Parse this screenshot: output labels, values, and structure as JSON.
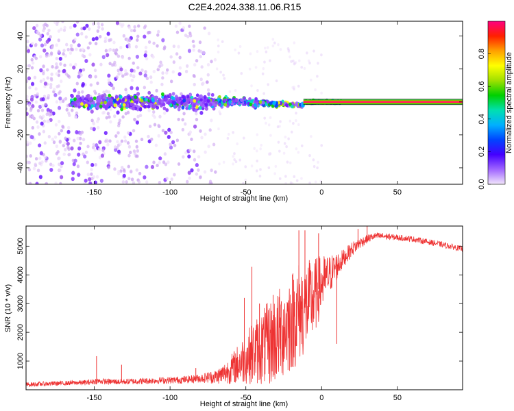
{
  "title": "C2E4.2024.338.11.06.R15",
  "chart_data": [
    {
      "type": "heatmap",
      "name": "spectrogram",
      "xlabel": "Height of straight line (km)",
      "ylabel": "Frequency (Hz)",
      "xlim": [
        -195,
        93
      ],
      "ylim": [
        -50,
        49
      ],
      "xticks": [
        -150,
        -100,
        -50,
        0,
        50
      ],
      "yticks": [
        -40,
        -20,
        0,
        20,
        40
      ],
      "colorbar": {
        "label": "Normalized spectral amplitude",
        "range": [
          0,
          1
        ],
        "ticks": [
          0.0,
          0.2,
          0.4,
          0.6,
          0.8
        ],
        "tick_labels": [
          "0.0",
          "0.2",
          "0.4",
          "0.6",
          "0.8"
        ],
        "colors": [
          "#f2e6fb",
          "#a066ff",
          "#4400ff",
          "#0044ff",
          "#00b0ff",
          "#00e0b0",
          "#00d000",
          "#a0e000",
          "#ffff00",
          "#ffa000",
          "#ff2000",
          "#ff0080"
        ]
      },
      "features": {
        "carrier_frequency_hz": 0,
        "narrowband_from_km": -12,
        "scatter_region_km": [
          -195,
          -70
        ],
        "spread_band_km": [
          -70,
          -12
        ]
      }
    },
    {
      "type": "line",
      "name": "snr",
      "xlabel": "Height of straight line (km)",
      "ylabel": "SNR (10 * v/v)",
      "xlim": [
        -195,
        93
      ],
      "ylim": [
        0,
        5700
      ],
      "xticks": [
        -150,
        -100,
        -50,
        0,
        50
      ],
      "yticks": [
        1000,
        2000,
        3000,
        4000,
        5000
      ],
      "line_color": "#ee3333",
      "series": [
        {
          "x": [
            -195,
            -185,
            -175,
            -165,
            -155,
            -148,
            -140,
            -130,
            -120,
            -110,
            -100,
            -90,
            -80,
            -70,
            -65,
            -60,
            -55,
            -50,
            -45,
            -40,
            -35,
            -30,
            -25,
            -20,
            -15,
            -10,
            -5,
            0,
            5,
            10,
            15,
            20,
            25,
            30,
            35,
            40,
            50,
            60,
            70,
            80,
            93
          ],
          "y": [
            180,
            200,
            220,
            240,
            250,
            300,
            280,
            280,
            300,
            320,
            330,
            350,
            400,
            450,
            550,
            700,
            900,
            1100,
            1300,
            1450,
            1600,
            1800,
            2100,
            2400,
            2700,
            2900,
            3200,
            3700,
            4000,
            4300,
            4600,
            4900,
            5100,
            5250,
            5350,
            5350,
            5300,
            5250,
            5150,
            5050,
            4900
          ],
          "noise_amplitude": [
            80,
            80,
            80,
            80,
            90,
            100,
            100,
            100,
            110,
            110,
            120,
            130,
            150,
            250,
            350,
            500,
            700,
            900,
            1100,
            1300,
            1500,
            1600,
            1700,
            1800,
            1800,
            1600,
            1400,
            1000,
            700,
            500,
            300,
            250,
            200,
            150,
            120,
            120,
            100,
            100,
            100,
            100,
            100
          ],
          "spikes": [
            {
              "x": -148.5,
              "y": 1170
            },
            {
              "x": -132,
              "y": 870
            },
            {
              "x": -83,
              "y": 760
            },
            {
              "x": -51,
              "y": 3200
            },
            {
              "x": -46,
              "y": 4280
            },
            {
              "x": -41,
              "y": 3000
            },
            {
              "x": -32,
              "y": 3300
            },
            {
              "x": -15,
              "y": 5550
            },
            {
              "x": -11,
              "y": 5550
            },
            {
              "x": -2,
              "y": 5450
            },
            {
              "x": 10,
              "y": 1600
            },
            {
              "x": 24,
              "y": 5600
            },
            {
              "x": 30,
              "y": 5700
            }
          ]
        }
      ]
    }
  ]
}
